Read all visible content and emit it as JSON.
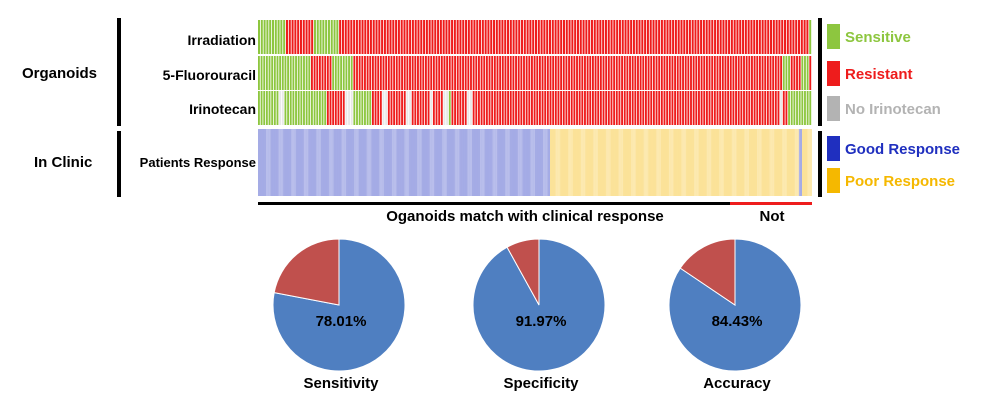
{
  "groups": {
    "organoids": "Organoids",
    "in_clinic": "In Clinic"
  },
  "rows": [
    {
      "label": "Irradiation",
      "cells": "GGGGGGGGGGRRRRRRRRRRGGGGGGGGGRRRRRRRRRRRRRRRRRRRRRRRRRRRRRRRRRRRRRRRRRRRRRRRRRRRRRRRRRRRRRRRRRRRRRRRRRRRRRRRRRRRRRRRRRRRRRRRRRRRRRRRRRRRRRRRRRRRRRRRRRRRRRRRRRRRRRRRRRRRRRRRRRRRRRRRRRRRRRRRRRRRRRRRRG"
    },
    {
      "label": "5-Fluorouracil",
      "cells": "GGGGGGGGGGGGGGGGGGGGRRRRRRRRGGGGGGGGRRRRRRRRRRRRRRRRRRRRRRRRRRRRRRRRRRRRRRRRRRRRRRRRRRRRRRRRRRRRRRRRRRRRRRRRRRRRRRRRRRRRRRRRRRRRRRRRRRRRRRRRRRRRRRRRRRRRRRRRRRRRRRRRRRRRRRRRRRRRRRRRRRRRRRRRRRRRRRRRRRGGGRRRRGGGR"
    },
    {
      "label": "Irinotecan",
      "cells": "GGGGGGGGWWGGGGGGGGGGGGGGGGRRRRRRRWWWGGGGGGGRRRRWWRRRRRRRWWRRRRRRRWRRRRWWGRRRRRRWWRRRRRRRRRRRRRRRRRRRRRRRRRRRRRRRRRRRRRRRRRRRRRRRRRRRRRRRRRRRRRRRRRRRRRRRRRRRRRRRRRRRRRRRRRRRRRRRRRRRRRRRRRRRRRRRRRRRRWRRGGGGGGGGG"
    },
    {
      "label": "Patients Response",
      "cells": "BBBBBBBBBBBBBBBBBBBBBBBBBBBBBBBBBBBBBBBBBBBBBBBBBBBBBBBBBBBBBBBBBBBBBBBBBBBBBBBBBBBBBBBBBBBBBBBBBBBBBBBBBBBBBBBBBBBBBBBBBBBBBBBBBBBBBBBBBBBBBBBBBBBBBBBBBBBBBBBBBBBBBBBBBBBBBBBBBBBBBBBBBBBBBBBBBBBBBBBBBBBBBBBBBBBBBBBBBBBBBBBBBBBBBBBBBBBBBBBBBBBBBBBBBBBBBBBBBBBBBBBBBBBBBYYYYYYYYYYYYYYYYYYYYYYYYYYYYYYYYYYYYYYYYYYYYYYYYYYYYYYYYYYYYYYYYYYYYYYYYYYYYYYYYYYYYYYYYYYYYYYYYYYYYYYYYYYYYYYYYYYYYYYYYYYYYYYYYYYYYYYYYYYYYYYYYYYYYYYYYYYYYYYYYYYYYYYYYYYYYYYYYYYYYYYYYYYYYYYYYYYYYYYYYYYYYYYYYYYYYYYYYYYYYYYYYYYYYYBBBYYYYYYYYY"
    }
  ],
  "legend": [
    {
      "code": "G",
      "label": "Sensitive",
      "color": "#8dc63f"
    },
    {
      "code": "R",
      "label": "Resistant",
      "color": "#ee1c1c"
    },
    {
      "code": "W",
      "label": "No Irinotecan",
      "color": "#b3b3b3"
    },
    {
      "code": "B",
      "label": "Good Response",
      "color": "#1f2fbf"
    },
    {
      "code": "Y",
      "label": "Poor Response",
      "color": "#f5b800"
    }
  ],
  "match_label": "Oganoids match with clinical response",
  "not_label": "Not",
  "chart_data": [
    {
      "type": "pie",
      "title": "Sensitivity",
      "label": "78.01%",
      "values": [
        78.01,
        21.99
      ],
      "colors": [
        "#4f7fc1",
        "#c0504d"
      ]
    },
    {
      "type": "pie",
      "title": "Specificity",
      "label": "91.97%",
      "values": [
        91.97,
        8.03
      ],
      "colors": [
        "#4f7fc1",
        "#c0504d"
      ]
    },
    {
      "type": "pie",
      "title": "Accuracy",
      "label": "84.43%",
      "values": [
        84.43,
        15.57
      ],
      "colors": [
        "#4f7fc1",
        "#c0504d"
      ]
    }
  ]
}
